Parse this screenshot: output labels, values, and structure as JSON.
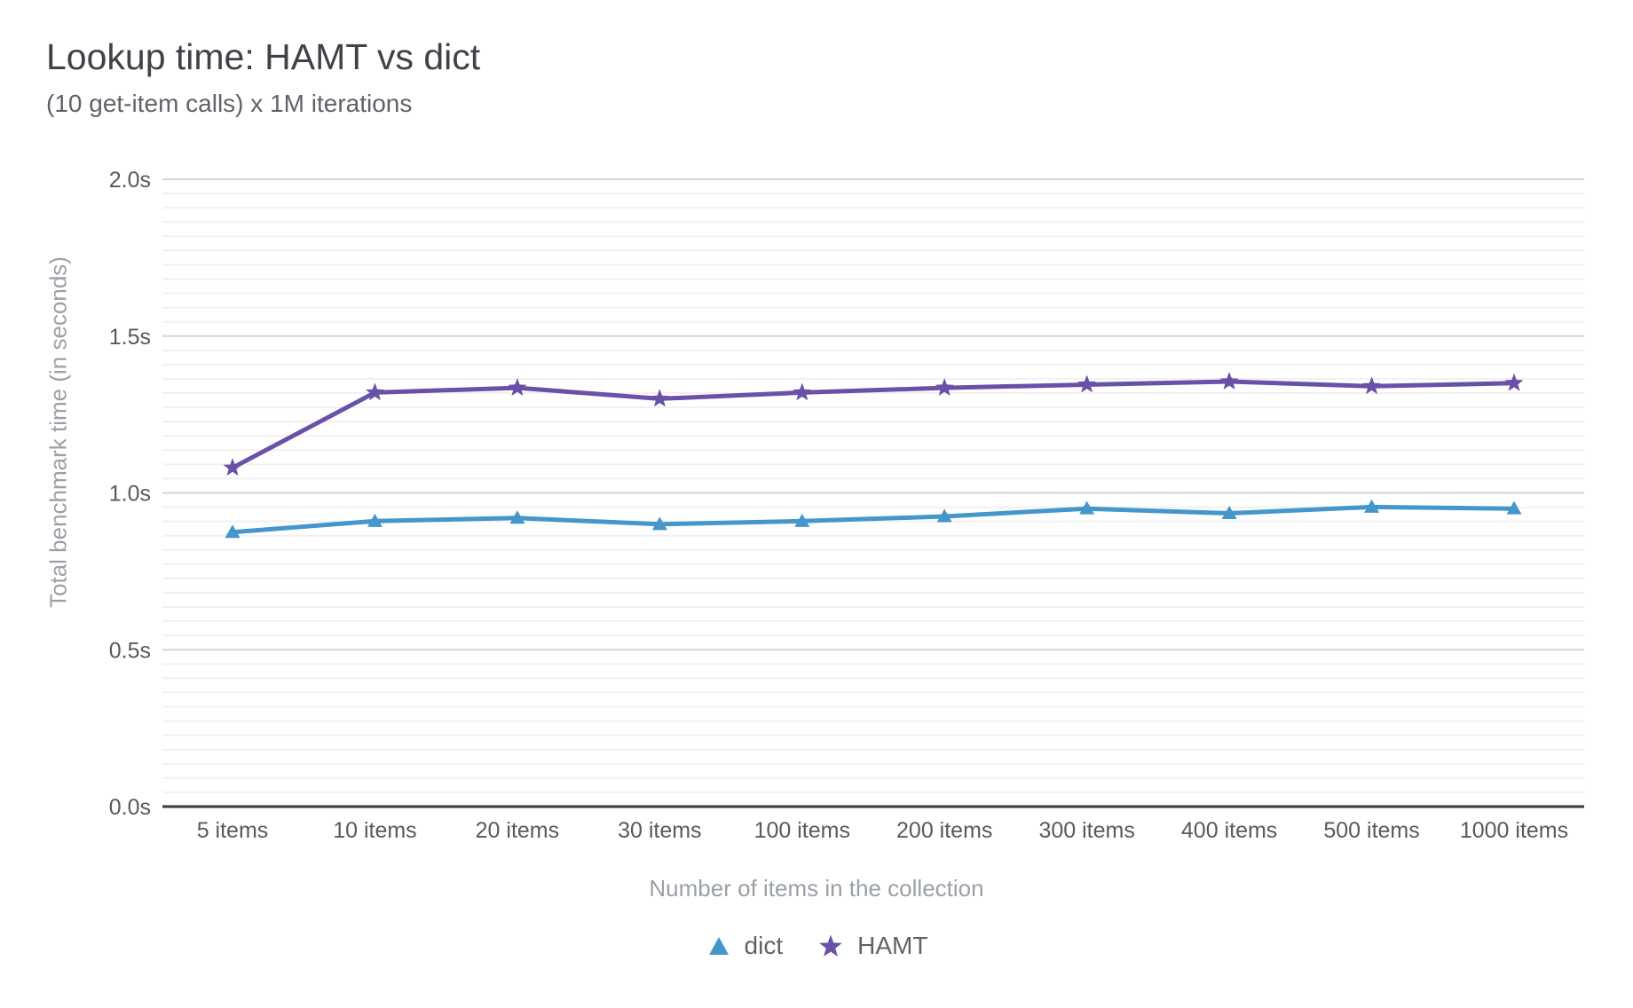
{
  "header": {
    "title": "Lookup time: HAMT vs dict",
    "subtitle": "(10 get-item calls) x 1M iterations"
  },
  "chart_data": {
    "type": "line",
    "title": "Lookup time: HAMT vs dict",
    "subtitle": "(10 get-item calls) x 1M iterations",
    "categories": [
      "5 items",
      "10 items",
      "20 items",
      "30 items",
      "100 items",
      "200 items",
      "300 items",
      "400 items",
      "500 items",
      "1000 items"
    ],
    "series": [
      {
        "name": "dict",
        "marker": "triangle",
        "color": "#4596cb",
        "values": [
          0.875,
          0.91,
          0.92,
          0.9,
          0.91,
          0.925,
          0.95,
          0.935,
          0.955,
          0.95
        ]
      },
      {
        "name": "HAMT",
        "marker": "star",
        "color": "#6a51a8",
        "values": [
          1.08,
          1.32,
          1.335,
          1.3,
          1.32,
          1.335,
          1.345,
          1.355,
          1.34,
          1.35
        ]
      }
    ],
    "xlabel": "Number of items in the collection",
    "ylabel": "Total benchmark time (in seconds)",
    "ylim": [
      0,
      2.0
    ],
    "yticks": [
      {
        "value": 0.0,
        "label": "0.0s"
      },
      {
        "value": 0.5,
        "label": "0.5s"
      },
      {
        "value": 1.0,
        "label": "1.0s"
      },
      {
        "value": 1.5,
        "label": "1.5s"
      },
      {
        "value": 2.0,
        "label": "2.0s"
      }
    ],
    "grid": {
      "major_step": 0.5,
      "minor_subdivisions": 11,
      "grid_on": true
    },
    "legend_position": "bottom",
    "colors": {
      "major_grid": "#d6d6d6",
      "minor_grid": "#f1f1f1",
      "axis_line": "#3a3a3a",
      "tick_label": "#565a5e",
      "axis_title": "#9aa0a6"
    }
  },
  "legend": {
    "items": [
      {
        "label": "dict"
      },
      {
        "label": "HAMT"
      }
    ]
  }
}
